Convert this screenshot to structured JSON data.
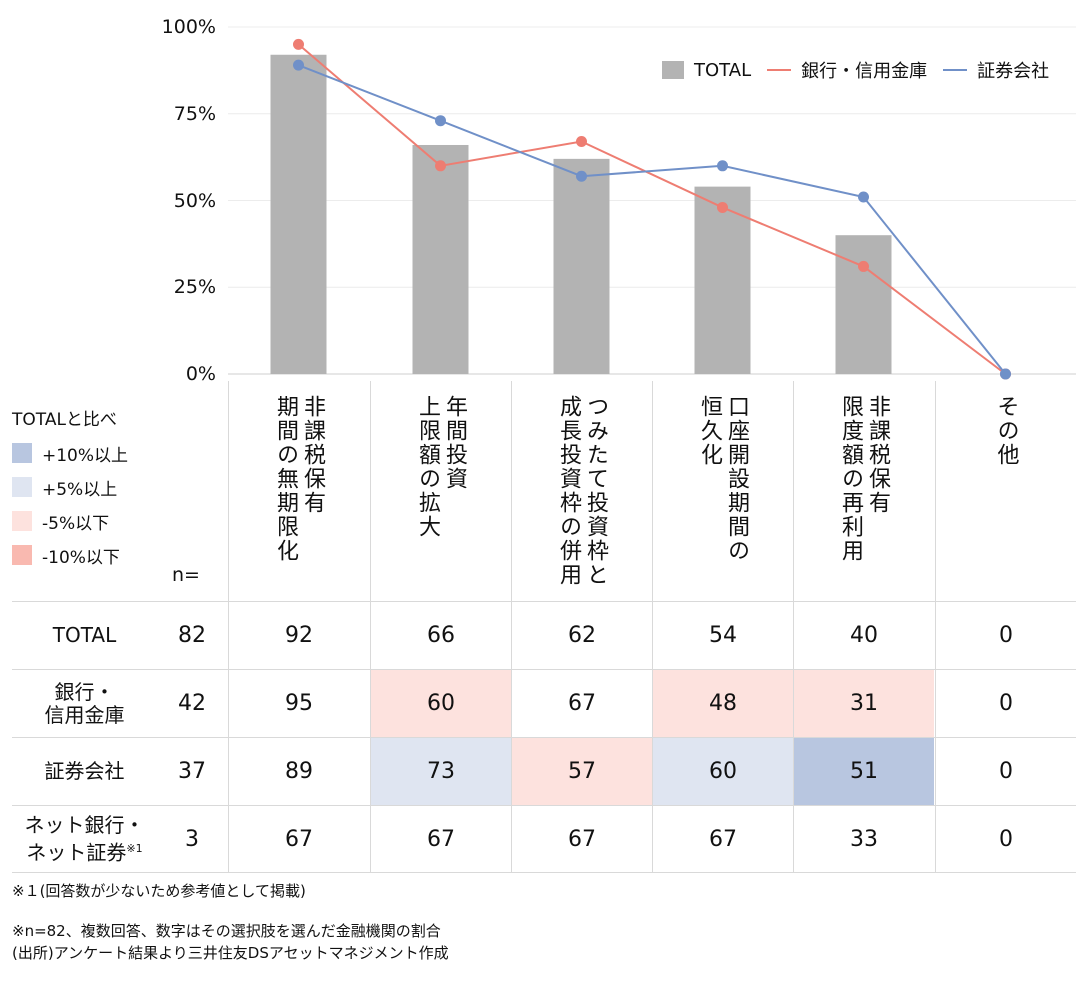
{
  "chart_data": {
    "type": "bar",
    "categories": [
      "非課税保有\n期間の無期限化",
      "年間投資\n上限額の拡大",
      "つみたて投資枠と\n成長投資枠の併用",
      "口座開設期間の\n恒久化",
      "非課税保有\n限度額の再利用",
      "その他"
    ],
    "series": [
      {
        "name": "TOTAL",
        "type": "bar",
        "color": "#b3b3b3",
        "values": [
          92,
          66,
          62,
          54,
          40,
          0
        ]
      },
      {
        "name": "銀行・信用金庫",
        "type": "line",
        "color": "#ee7d72",
        "values": [
          95,
          60,
          67,
          48,
          31,
          0
        ]
      },
      {
        "name": "証券会社",
        "type": "line",
        "color": "#7090c8",
        "values": [
          89,
          73,
          57,
          60,
          51,
          0
        ]
      }
    ],
    "yticks": [
      "100%",
      "75%",
      "50%",
      "25%",
      "0%"
    ],
    "ylim": [
      0,
      100
    ],
    "legend": "top-right"
  },
  "table": {
    "color_legend_title": "TOTALと比べ",
    "color_legend": [
      {
        "label": "+10%以上",
        "color": "#b8c6e0"
      },
      {
        "label": "+5%以上",
        "color": "#dfe5f1"
      },
      {
        "label": "-5%以下",
        "color": "#fde2de"
      },
      {
        "label": "-10%以下",
        "color": "#f9b9b0"
      }
    ],
    "n_label": "n=",
    "rows": [
      {
        "label": "TOTAL",
        "label_sup": "",
        "n": "82",
        "values": [
          "92",
          "66",
          "62",
          "54",
          "40",
          "0"
        ],
        "colors": [
          "",
          "",
          "",
          "",
          "",
          ""
        ]
      },
      {
        "label": "銀行・\n信用金庫",
        "label_sup": "",
        "n": "42",
        "values": [
          "95",
          "60",
          "67",
          "48",
          "31",
          "0"
        ],
        "colors": [
          "",
          "#fde2de",
          "",
          "#fde2de",
          "#fde2de",
          ""
        ]
      },
      {
        "label": "証券会社",
        "label_sup": "",
        "n": "37",
        "values": [
          "89",
          "73",
          "57",
          "60",
          "51",
          "0"
        ],
        "colors": [
          "",
          "#dfe5f1",
          "#fde2de",
          "#dfe5f1",
          "#b8c6e0",
          ""
        ]
      },
      {
        "label": "ネット銀行・\nネット証券",
        "label_sup": "※1",
        "n": "3",
        "values": [
          "67",
          "67",
          "67",
          "67",
          "33",
          "0"
        ],
        "colors": [
          "",
          "",
          "",
          "",
          "",
          ""
        ]
      }
    ]
  },
  "notes": [
    "※１(回答数が少ないため参考値として掲載)",
    "※n=82、複数回答、数字はその選択肢を選んだ金融機関の割合",
    "(出所)アンケート結果より三井住友DSアセットマネジメント作成"
  ]
}
